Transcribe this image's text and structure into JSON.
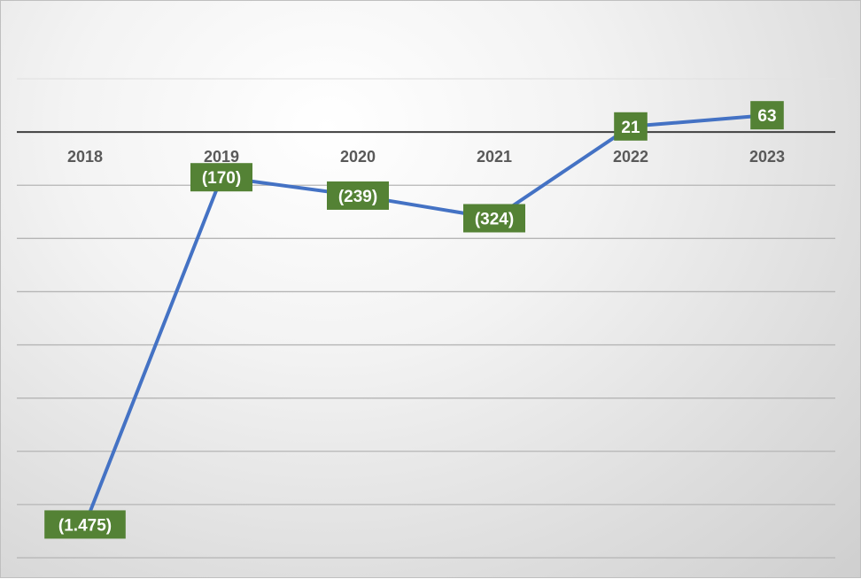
{
  "chart_data": {
    "type": "line",
    "categories": [
      "2018",
      "2019",
      "2020",
      "2021",
      "2022",
      "2023"
    ],
    "series": [
      {
        "values": [
          -1475,
          -170,
          -239,
          -324,
          21,
          63
        ],
        "data_labels": [
          "(1.475)",
          "(170)",
          "(239)",
          "(324)",
          "21",
          "63"
        ],
        "color": "#4472c4"
      }
    ],
    "data_label_color": "#548235",
    "ylim": [
      -1600,
      200
    ],
    "grid": true,
    "legend": "none"
  }
}
